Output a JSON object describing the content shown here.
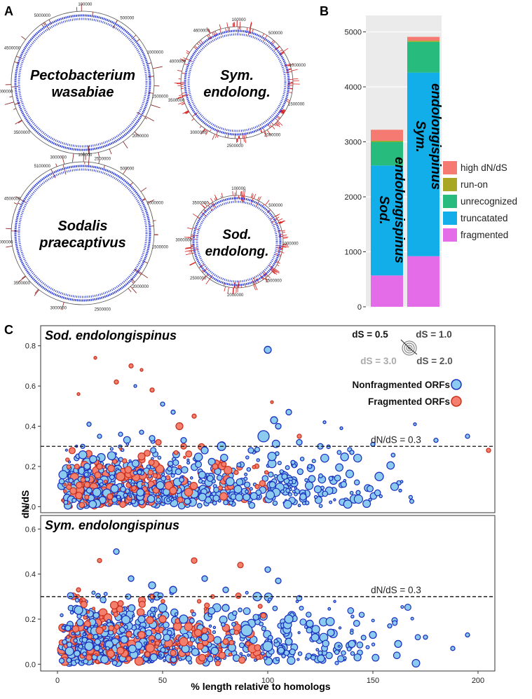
{
  "panels": {
    "a": "A",
    "b": "B",
    "c": "C"
  },
  "panel_a": {
    "genomes": [
      {
        "name_line1": "Pectobacterium",
        "name_line2": "wasabiae",
        "italic": true,
        "ticks": [
          "100000",
          "500000",
          "1000000",
          "1500000",
          "2000000",
          "2500000",
          "3000000",
          "3500000",
          "4000000",
          "4500000",
          "5000000"
        ],
        "ring": "blue",
        "outer": "brown"
      },
      {
        "name_line1": "Sym.",
        "name_line2": "endolong.",
        "italic": true,
        "ticks": [
          "100000",
          "500000",
          "1000000",
          "1500000",
          "2000000",
          "2500000",
          "3000000",
          "3500000",
          "4000000",
          "4600000"
        ],
        "ring": "blue",
        "outer": "red"
      },
      {
        "name_line1": "Sodalis",
        "name_line2": "praecaptivus",
        "italic": true,
        "ticks": [
          "100000",
          "500000",
          "1000000",
          "1500000",
          "2000000",
          "2500000",
          "3000000",
          "3500000",
          "4000000",
          "4500000",
          "5100000"
        ],
        "ring": "blue",
        "outer": "brown"
      },
      {
        "name_line1": "Sod.",
        "name_line2": "endolong.",
        "italic": true,
        "ticks": [
          "100000",
          "500000",
          "1000000",
          "1500000",
          "2000000",
          "2500000",
          "3000000",
          "3500000"
        ],
        "ring": "blue",
        "outer": "red"
      }
    ]
  },
  "chart_data": [
    {
      "type": "bar",
      "stacked": true,
      "categories": [
        "Sod. endolongispinus",
        "Sym. endolongispinus"
      ],
      "series": [
        {
          "name": "fragmented",
          "color": "#e46ce8",
          "values": [
            570,
            920
          ]
        },
        {
          "name": "truncatated",
          "color": "#12aeea",
          "values": [
            2000,
            3340
          ]
        },
        {
          "name": "unrecognized",
          "color": "#28bb7e",
          "values": [
            430,
            560
          ]
        },
        {
          "name": "run-on",
          "color": "#a8a622",
          "values": [
            20,
            20
          ]
        },
        {
          "name": "high dN/dS",
          "color": "#f47a72",
          "values": [
            200,
            70
          ]
        }
      ],
      "bar_labels": [
        [
          "Sod.",
          "endolongispinus"
        ],
        [
          "Sym.",
          "endolongispinus"
        ]
      ],
      "legend": [
        "high dN/dS",
        "run-on",
        "unrecognized",
        "truncatated",
        "fragmented"
      ],
      "legend_colors": [
        "#f47a72",
        "#a8a622",
        "#28bb7e",
        "#12aeea",
        "#e46ce8"
      ],
      "yticks": [
        "0",
        "1000",
        "2000",
        "3000",
        "4000",
        "5000"
      ],
      "ylim": [
        0,
        5000
      ]
    },
    {
      "type": "scatter",
      "title": "Sod. endolongispinus",
      "xlabel": "% length relative to homologs",
      "ylabel": "dN/dS",
      "xlim": [
        -8,
        208
      ],
      "ylim": [
        -0.03,
        0.9
      ],
      "yticks": [
        "0.0",
        "0.2",
        "0.4",
        "0.6",
        "0.8"
      ],
      "threshold": 0.3,
      "threshold_label": "dN/dS = 0.3",
      "size_legend": [
        "dS = 0.5",
        "dS = 1.0",
        "dS = 3.0",
        "dS = 2.0"
      ],
      "legend": [
        "Nonfragmented ORFs",
        "Fragmented ORFs"
      ],
      "series": [
        {
          "name": "Nonfragmented ORFs",
          "color": "#8ccbf0",
          "stroke": "#1a2fbd",
          "points": [
            [
              100,
              0.78,
              5
            ],
            [
              110,
              0.47,
              4
            ],
            [
              103,
              0.43,
              5
            ],
            [
              105,
              0.4,
              4
            ],
            [
              98,
              0.35,
              8
            ],
            [
              115,
              0.32,
              4
            ],
            [
              125,
              0.3,
              4
            ],
            [
              140,
              0.27,
              3
            ],
            [
              150,
              0.31,
              3
            ],
            [
              153,
              0.15,
              6
            ],
            [
              163,
              0.08,
              2
            ],
            [
              180,
              0.33,
              3
            ],
            [
              195,
              0.35,
              3
            ],
            [
              170,
              0.41,
              2
            ],
            [
              135,
              0.39,
              2
            ],
            [
              127,
              0.42,
              2
            ],
            [
              92,
              0.28,
              4
            ],
            [
              78,
              0.3,
              6
            ],
            [
              60,
              0.33,
              4
            ],
            [
              45,
              0.34,
              4
            ],
            [
              40,
              0.37,
              3
            ],
            [
              30,
              0.36,
              3
            ],
            [
              20,
              0.35,
              3
            ],
            [
              15,
              0.41,
              3
            ],
            [
              12,
              0.3,
              3
            ],
            [
              50,
              0.51,
              3
            ],
            [
              55,
              0.47,
              3
            ],
            [
              37,
              0.6,
              2
            ],
            [
              70,
              0.28,
              5
            ],
            [
              102,
              0.25,
              6
            ],
            [
              108,
              0.15,
              4
            ],
            [
              112,
              0.22,
              3
            ],
            [
              130,
              0.14,
              3
            ],
            [
              143,
              0.07,
              3
            ],
            [
              120,
              0.2,
              3
            ]
          ]
        },
        {
          "name": "Fragmented ORFs",
          "color": "#f47f6d",
          "stroke": "#c8321e",
          "points": [
            [
              205,
              0.28,
              3
            ],
            [
              18,
              0.74,
              2
            ],
            [
              35,
              0.7,
              3
            ],
            [
              40,
              0.68,
              2
            ],
            [
              28,
              0.62,
              3
            ],
            [
              45,
              0.58,
              3
            ],
            [
              10,
              0.56,
              2
            ],
            [
              58,
              0.4,
              5
            ],
            [
              48,
              0.32,
              4
            ],
            [
              40,
              0.25,
              5
            ],
            [
              30,
              0.15,
              6
            ],
            [
              60,
              0.3,
              4
            ],
            [
              65,
              0.45,
              3
            ],
            [
              55,
              0.08,
              5
            ],
            [
              75,
              0.2,
              4
            ],
            [
              85,
              0.17,
              3
            ],
            [
              95,
              0.1,
              3
            ],
            [
              115,
              0.35,
              3
            ],
            [
              102,
              0.52,
              2
            ],
            [
              20,
              0.2,
              4
            ],
            [
              25,
              0.05,
              4
            ]
          ]
        }
      ]
    },
    {
      "type": "scatter",
      "title": "Sym. endolongispinus",
      "xlabel": "% length relative to homologs",
      "ylabel": "dN/dS",
      "xlim": [
        -8,
        208
      ],
      "ylim": [
        -0.03,
        0.66
      ],
      "yticks": [
        "0.0",
        "0.2",
        "0.4",
        "0.6"
      ],
      "xticks": [
        "0",
        "50",
        "100",
        "150",
        "200"
      ],
      "threshold": 0.3,
      "threshold_label": "dN/dS = 0.3",
      "series": [
        {
          "name": "Nonfragmented ORFs",
          "color": "#8ccbf0",
          "stroke": "#1a2fbd",
          "points": [
            [
              10,
              0.24,
              6
            ],
            [
              28,
              0.5,
              4
            ],
            [
              35,
              0.38,
              4
            ],
            [
              45,
              0.35,
              5
            ],
            [
              55,
              0.33,
              5
            ],
            [
              70,
              0.38,
              4
            ],
            [
              80,
              0.33,
              4
            ],
            [
              95,
              0.3,
              6
            ],
            [
              105,
              0.37,
              4
            ],
            [
              100,
              0.42,
              4
            ],
            [
              110,
              0.2,
              6
            ],
            [
              120,
              0.18,
              5
            ],
            [
              130,
              0.14,
              5
            ],
            [
              140,
              0.09,
              5
            ],
            [
              150,
              0.13,
              5
            ],
            [
              162,
              0.09,
              5
            ],
            [
              175,
              0.12,
              3
            ],
            [
              195,
              0.13,
              3
            ],
            [
              188,
              0.07,
              3
            ],
            [
              158,
              0.17,
              3
            ],
            [
              5,
              0.16,
              4
            ],
            [
              15,
              0.08,
              6
            ],
            [
              60,
              0.2,
              6
            ],
            [
              90,
              0.15,
              8
            ],
            [
              100,
              0.08,
              7
            ],
            [
              110,
              0.1,
              5
            ],
            [
              125,
              0.05,
              3
            ],
            [
              80,
              0.25,
              5
            ],
            [
              40,
              0.2,
              5
            ],
            [
              70,
              0.12,
              5
            ],
            [
              50,
              0.25,
              6
            ]
          ]
        },
        {
          "name": "Fragmented ORFs",
          "color": "#f47f6d",
          "stroke": "#c8321e",
          "points": [
            [
              20,
              0.46,
              3
            ],
            [
              65,
              0.46,
              4
            ],
            [
              87,
              0.44,
              4
            ],
            [
              10,
              0.33,
              3
            ],
            [
              30,
              0.27,
              4
            ],
            [
              50,
              0.2,
              5
            ],
            [
              60,
              0.1,
              6
            ],
            [
              40,
              0.13,
              5
            ],
            [
              30,
              0.06,
              5
            ],
            [
              70,
              0.15,
              4
            ],
            [
              80,
              0.1,
              4
            ],
            [
              20,
              0.15,
              5
            ],
            [
              45,
              0.3,
              3
            ],
            [
              55,
              0.05,
              4
            ],
            [
              15,
              0.03,
              4
            ]
          ]
        }
      ]
    }
  ]
}
